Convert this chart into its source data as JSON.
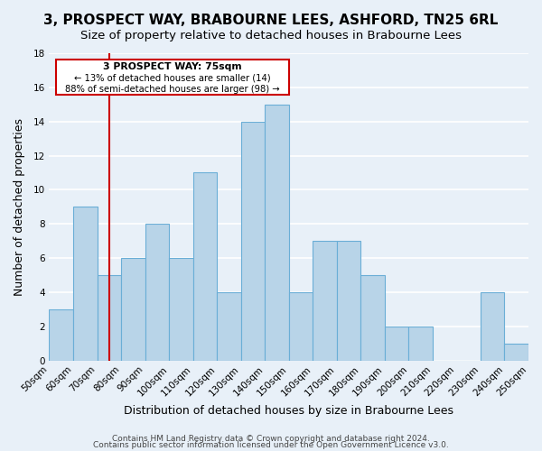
{
  "title": "3, PROSPECT WAY, BRABOURNE LEES, ASHFORD, TN25 6RL",
  "subtitle": "Size of property relative to detached houses in Brabourne Lees",
  "xlabel": "Distribution of detached houses by size in Brabourne Lees",
  "ylabel": "Number of detached properties",
  "bin_edges": [
    50,
    60,
    70,
    80,
    90,
    100,
    110,
    120,
    130,
    140,
    150,
    160,
    170,
    180,
    190,
    200,
    210,
    220,
    230,
    240,
    250
  ],
  "bar_heights": [
    3,
    9,
    5,
    6,
    8,
    6,
    11,
    4,
    14,
    15,
    4,
    7,
    7,
    5,
    2,
    2,
    0,
    0,
    4,
    1
  ],
  "bar_color": "#b8d4e8",
  "bar_edge_color": "#6aaed6",
  "background_color": "#e8f0f8",
  "grid_color": "#ffffff",
  "property_line_x": 75,
  "annotation_title": "3 PROSPECT WAY: 75sqm",
  "annotation_line1": "← 13% of detached houses are smaller (14)",
  "annotation_line2": "88% of semi-detached houses are larger (98) →",
  "annotation_box_color": "#ffffff",
  "annotation_box_edge": "#cc0000",
  "property_line_color": "#cc0000",
  "ylim": [
    0,
    18
  ],
  "yticks": [
    0,
    2,
    4,
    6,
    8,
    10,
    12,
    14,
    16,
    18
  ],
  "footer1": "Contains HM Land Registry data © Crown copyright and database right 2024.",
  "footer2": "Contains public sector information licensed under the Open Government Licence v3.0.",
  "title_fontsize": 11,
  "subtitle_fontsize": 9.5,
  "xlabel_fontsize": 9,
  "ylabel_fontsize": 9,
  "tick_fontsize": 7.5,
  "footer_fontsize": 6.5
}
